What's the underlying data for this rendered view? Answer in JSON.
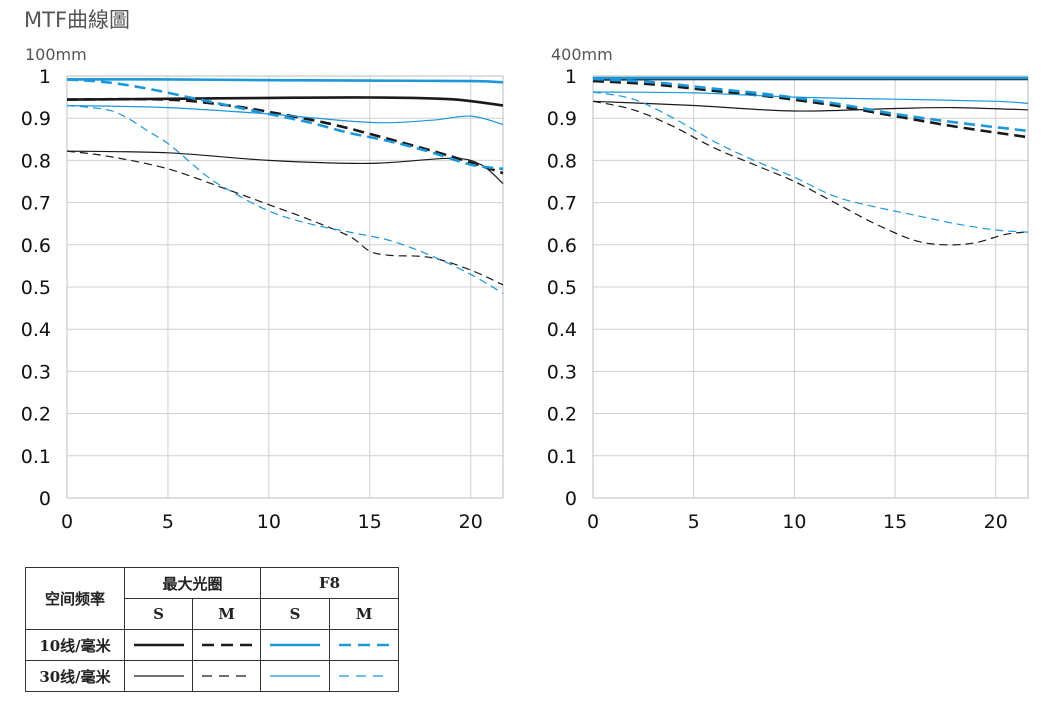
{
  "title": "MTF曲線圖",
  "colors": {
    "black": "#1a1a1a",
    "blue": "#1b97da",
    "grid": "#cfcfcf"
  },
  "chart_data": [
    {
      "type": "line",
      "title": "100mm",
      "xlim": [
        0,
        21.6
      ],
      "ylim": [
        0,
        1
      ],
      "xticks": [
        0,
        5,
        10,
        15,
        20
      ],
      "yticks": [
        0,
        0.1,
        0.2,
        0.3,
        0.4,
        0.5,
        0.6,
        0.7,
        0.8,
        0.9,
        1
      ],
      "ytick_labels": [
        "0",
        "0.1",
        "0.2",
        "0.3",
        "0.4",
        "0.5",
        "0.6",
        "0.7",
        "0.8",
        "0.9",
        "1"
      ],
      "series": [
        {
          "name": "10线/毫米 最大光圈 S",
          "color": "black",
          "dash": false,
          "width": 2.6,
          "x": [
            0,
            5,
            10,
            15,
            19,
            21.6
          ],
          "y": [
            0.944,
            0.946,
            0.948,
            0.949,
            0.945,
            0.93
          ]
        },
        {
          "name": "10线/毫米 最大光圈 M",
          "color": "black",
          "dash": true,
          "width": 2.6,
          "x": [
            0,
            5,
            8,
            10,
            13,
            16,
            19,
            21.6
          ],
          "y": [
            0.944,
            0.944,
            0.93,
            0.915,
            0.887,
            0.85,
            0.81,
            0.77
          ]
        },
        {
          "name": "30线/毫米 最大光圈 S",
          "color": "black",
          "dash": false,
          "width": 1.2,
          "x": [
            0,
            5,
            10,
            15,
            19,
            20.5,
            21.6
          ],
          "y": [
            0.822,
            0.818,
            0.8,
            0.793,
            0.805,
            0.79,
            0.745
          ]
        },
        {
          "name": "30线/毫米 最大光圈 M",
          "color": "black",
          "dash": true,
          "width": 1.2,
          "x": [
            0,
            2,
            5,
            8,
            10,
            12,
            14,
            15,
            16,
            18,
            20,
            21.6
          ],
          "y": [
            0.822,
            0.81,
            0.78,
            0.73,
            0.695,
            0.66,
            0.62,
            0.585,
            0.575,
            0.57,
            0.54,
            0.505
          ]
        },
        {
          "name": "10线/毫米 F8 S",
          "color": "blue",
          "dash": false,
          "width": 2.6,
          "x": [
            0,
            5,
            10,
            15,
            20,
            21.6
          ],
          "y": [
            0.992,
            0.992,
            0.99,
            0.989,
            0.988,
            0.985
          ]
        },
        {
          "name": "10线/毫米 F8 M",
          "color": "blue",
          "dash": true,
          "width": 2.6,
          "x": [
            0,
            2,
            4,
            6,
            8,
            10,
            12,
            14,
            16,
            18,
            20,
            21.6
          ],
          "y": [
            0.992,
            0.985,
            0.97,
            0.95,
            0.93,
            0.91,
            0.89,
            0.865,
            0.845,
            0.82,
            0.79,
            0.78
          ]
        },
        {
          "name": "30线/毫米 F8 S",
          "color": "blue",
          "dash": false,
          "width": 1.2,
          "x": [
            0,
            5,
            10,
            15,
            18,
            20,
            21.6
          ],
          "y": [
            0.93,
            0.925,
            0.91,
            0.89,
            0.895,
            0.905,
            0.885
          ]
        },
        {
          "name": "30线/毫米 F8 M",
          "color": "blue",
          "dash": true,
          "width": 1.2,
          "x": [
            0,
            2,
            3,
            4,
            5,
            6,
            7,
            8,
            10,
            12,
            14,
            16,
            18,
            20,
            21.6
          ],
          "y": [
            0.93,
            0.92,
            0.9,
            0.87,
            0.84,
            0.8,
            0.76,
            0.73,
            0.68,
            0.65,
            0.63,
            0.61,
            0.575,
            0.53,
            0.485
          ]
        }
      ]
    },
    {
      "type": "line",
      "title": "400mm",
      "xlim": [
        0,
        21.6
      ],
      "ylim": [
        0,
        1
      ],
      "xticks": [
        0,
        5,
        10,
        15,
        20
      ],
      "yticks": [
        0,
        0.1,
        0.2,
        0.3,
        0.4,
        0.5,
        0.6,
        0.7,
        0.8,
        0.9,
        1
      ],
      "ytick_labels": [
        "0",
        "0.1",
        "0.2",
        "0.3",
        "0.4",
        "0.5",
        "0.6",
        "0.7",
        "0.8",
        "0.9",
        "1"
      ],
      "series": [
        {
          "name": "10线/毫米 最大光圈 S",
          "color": "black",
          "dash": false,
          "width": 2.6,
          "x": [
            0,
            5,
            10,
            15,
            20,
            21.6
          ],
          "y": [
            0.992,
            0.993,
            0.993,
            0.993,
            0.993,
            0.993
          ]
        },
        {
          "name": "10线/毫米 最大光圈 M",
          "color": "black",
          "dash": true,
          "width": 2.6,
          "x": [
            0,
            3,
            6,
            9,
            12,
            15,
            18,
            21.6
          ],
          "y": [
            0.988,
            0.98,
            0.965,
            0.95,
            0.93,
            0.905,
            0.88,
            0.855
          ]
        },
        {
          "name": "30线/毫米 最大光圈 S",
          "color": "black",
          "dash": false,
          "width": 1.2,
          "x": [
            0,
            5,
            10,
            15,
            18,
            21.6
          ],
          "y": [
            0.94,
            0.93,
            0.917,
            0.923,
            0.925,
            0.92
          ]
        },
        {
          "name": "30线/毫米 最大光圈 M",
          "color": "black",
          "dash": true,
          "width": 1.2,
          "x": [
            0,
            2,
            4,
            6,
            8,
            10,
            12,
            14,
            16,
            17.5,
            19,
            20.5,
            21.6
          ],
          "y": [
            0.94,
            0.92,
            0.88,
            0.83,
            0.79,
            0.75,
            0.7,
            0.65,
            0.61,
            0.6,
            0.605,
            0.625,
            0.63
          ]
        },
        {
          "name": "10线/毫米 F8 S",
          "color": "blue",
          "dash": false,
          "width": 2.6,
          "x": [
            0,
            5,
            10,
            15,
            20,
            21.6
          ],
          "y": [
            0.995,
            0.995,
            0.995,
            0.995,
            0.995,
            0.995
          ]
        },
        {
          "name": "10线/毫米 F8 M",
          "color": "blue",
          "dash": true,
          "width": 2.6,
          "x": [
            0,
            3,
            6,
            9,
            12,
            15,
            18,
            21.6
          ],
          "y": [
            0.993,
            0.985,
            0.97,
            0.955,
            0.935,
            0.91,
            0.89,
            0.87
          ]
        },
        {
          "name": "30线/毫米 F8 S",
          "color": "blue",
          "dash": false,
          "width": 1.2,
          "x": [
            0,
            5,
            10,
            15,
            20,
            21.6
          ],
          "y": [
            0.962,
            0.96,
            0.95,
            0.945,
            0.94,
            0.935
          ]
        },
        {
          "name": "30线/毫米 F8 M",
          "color": "blue",
          "dash": true,
          "width": 1.2,
          "x": [
            0,
            2,
            4,
            6,
            8,
            10,
            12,
            14,
            16,
            18,
            20,
            21.6
          ],
          "y": [
            0.962,
            0.945,
            0.9,
            0.845,
            0.8,
            0.76,
            0.715,
            0.69,
            0.67,
            0.65,
            0.635,
            0.63
          ]
        }
      ]
    }
  ],
  "legend": {
    "header_freq": "空间频率",
    "header_max_aperture": "最大光圈",
    "header_f8": "F8",
    "col_s": "S",
    "col_m": "M",
    "row_10": "10线/毫米",
    "row_30": "30线/毫米"
  }
}
